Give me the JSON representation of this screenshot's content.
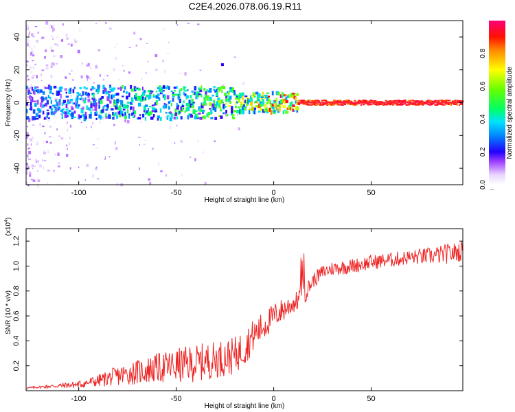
{
  "title": "C2E4.2026.078.06.19.R11",
  "colors": {
    "snr_line": "#ee2222",
    "axis": "#000000",
    "spec_low": "#d7b8ff",
    "spec_mid": "#2233dd",
    "spec_high": "#ff1e3c"
  },
  "colorbar": {
    "label": "Normalized spectral amplitude",
    "ticks": [
      "0.0",
      "0.2",
      "0.4",
      "0.6",
      "0.8"
    ],
    "tick_values": [
      0.0,
      0.2,
      0.4,
      0.6,
      0.8
    ],
    "range": [
      0,
      1
    ]
  },
  "chart_data": [
    {
      "type": "heatmap",
      "title": "C2E4.2026.078.06.19.R11",
      "xlabel": "Height of straight line (km)",
      "ylabel": "Frequency (Hz)",
      "xlim": [
        -127,
        97
      ],
      "ylim": [
        -50,
        50
      ],
      "xticks": [
        -100,
        -50,
        0,
        50
      ],
      "xtick_labels": [
        "-100",
        "-50",
        "0",
        "50"
      ],
      "yticks": [
        -40,
        -20,
        0,
        20,
        40
      ],
      "ytick_labels": [
        "-40",
        "-20",
        "0",
        "20",
        "40"
      ],
      "signal_band_center_hz": 0,
      "description_points": [
        {
          "x": -120,
          "freq": 0,
          "amp": 0.3
        },
        {
          "x": -100,
          "freq": -2,
          "amp": 0.35
        },
        {
          "x": -80,
          "freq": 1,
          "amp": 0.45
        },
        {
          "x": -60,
          "freq": 0,
          "amp": 0.45
        },
        {
          "x": -40,
          "freq": -1,
          "amp": 0.5
        },
        {
          "x": -20,
          "freq": 0,
          "amp": 0.6
        },
        {
          "x": 0,
          "freq": 0,
          "amp": 0.8
        },
        {
          "x": 15,
          "freq": 0,
          "amp": 0.95
        },
        {
          "x": 50,
          "freq": 0,
          "amp": 0.98
        },
        {
          "x": 90,
          "freq": 0,
          "amp": 0.98
        }
      ]
    },
    {
      "type": "line",
      "xlabel": "Height of straight line (km)",
      "ylabel": "SNR (10 * v/v)",
      "exponent_label": "(x10",
      "exponent_power": "4",
      "exponent_close": ")",
      "xlim": [
        -127,
        97
      ],
      "ylim": [
        0,
        1.3
      ],
      "xticks": [
        -100,
        -50,
        0,
        50
      ],
      "xtick_labels": [
        "-100",
        "-50",
        "0",
        "50"
      ],
      "yticks": [
        0.2,
        0.4,
        0.6,
        0.8,
        1.0,
        1.2
      ],
      "ytick_labels": [
        "0.2",
        "0.4",
        "0.6",
        "0.8",
        "1.0",
        "1.2"
      ],
      "series": [
        {
          "name": "SNR",
          "x": [
            -127,
            -120,
            -110,
            -100,
            -90,
            -80,
            -70,
            -60,
            -50,
            -40,
            -30,
            -20,
            -15,
            -10,
            -5,
            0,
            5,
            10,
            15,
            20,
            25,
            30,
            40,
            50,
            60,
            70,
            80,
            90,
            97
          ],
          "values": [
            0.02,
            0.03,
            0.04,
            0.05,
            0.08,
            0.12,
            0.15,
            0.18,
            0.2,
            0.22,
            0.25,
            0.28,
            0.35,
            0.45,
            0.52,
            0.6,
            0.65,
            0.7,
            0.75,
            0.88,
            0.95,
            0.98,
            1.0,
            1.03,
            1.05,
            1.07,
            1.08,
            1.1,
            1.12
          ],
          "noise_amplitude": [
            0.01,
            0.01,
            0.02,
            0.03,
            0.05,
            0.08,
            0.1,
            0.12,
            0.14,
            0.15,
            0.15,
            0.15,
            0.15,
            0.13,
            0.12,
            0.1,
            0.1,
            0.08,
            0.08,
            0.06,
            0.06,
            0.06,
            0.06,
            0.06,
            0.06,
            0.06,
            0.07,
            0.08,
            0.08
          ]
        }
      ]
    }
  ]
}
